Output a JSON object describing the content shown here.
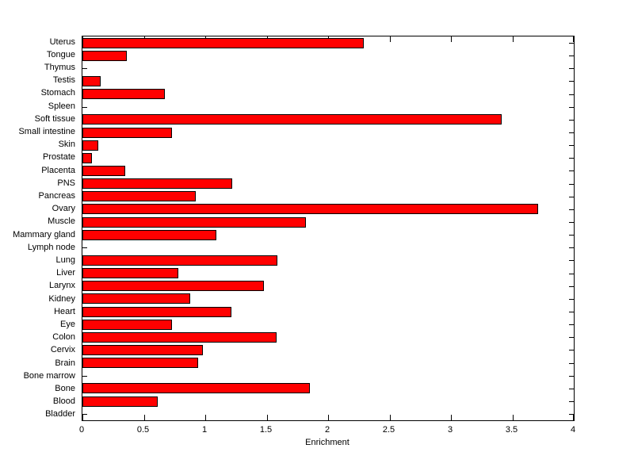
{
  "chart_data": {
    "type": "bar",
    "orientation": "horizontal",
    "title": "",
    "xlabel": "Enrichment",
    "ylabel": "",
    "xlim": [
      0,
      4
    ],
    "x_ticks": [
      0,
      0.5,
      1,
      1.5,
      2,
      2.5,
      3,
      3.5,
      4
    ],
    "x_tick_labels": [
      "0",
      "0.5",
      "1",
      "1.5",
      "2",
      "2.5",
      "3",
      "3.5",
      "4"
    ],
    "categories": [
      "Uterus",
      "Tongue",
      "Thymus",
      "Testis",
      "Stomach",
      "Spleen",
      "Soft tissue",
      "Small intestine",
      "Skin",
      "Prostate",
      "Placenta",
      "PNS",
      "Pancreas",
      "Ovary",
      "Muscle",
      "Mammary gland",
      "Lymph node",
      "Lung",
      "Liver",
      "Larynx",
      "Kidney",
      "Heart",
      "Eye",
      "Colon",
      "Cervix",
      "Brain",
      "Bone marrow",
      "Bone",
      "Blood",
      "Bladder"
    ],
    "values": [
      2.29,
      0.36,
      0,
      0.15,
      0.67,
      0,
      3.41,
      0.73,
      0.13,
      0.08,
      0.35,
      1.22,
      0.92,
      3.71,
      1.82,
      1.09,
      0,
      1.59,
      0.78,
      1.48,
      0.88,
      1.21,
      0.73,
      1.58,
      0.98,
      0.94,
      0,
      1.85,
      0.61,
      0
    ],
    "bar_color": "#ff0000",
    "bar_edge_color": "#000000",
    "axis_color": "#000000",
    "background": "#ffffff",
    "grid": false,
    "legend": null
  }
}
